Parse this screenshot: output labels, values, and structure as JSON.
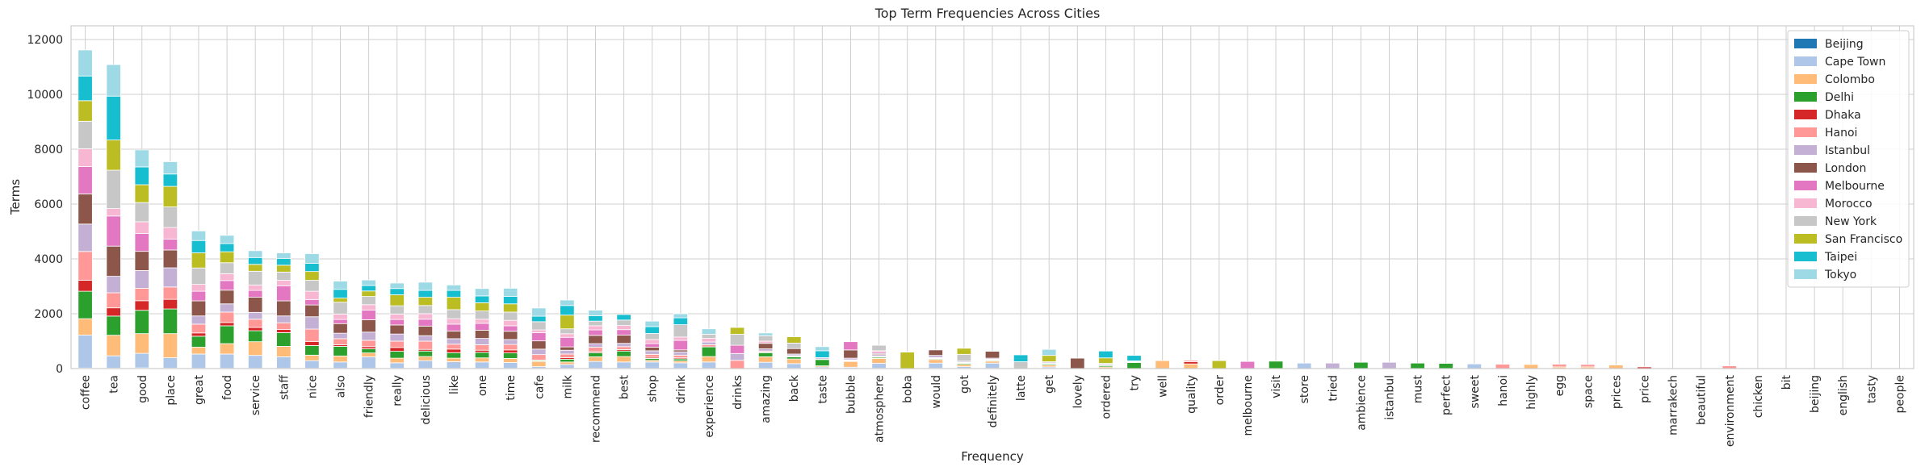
{
  "chart_data": {
    "type": "bar",
    "stacked": true,
    "title": "Top Term Frequencies Across Cities",
    "xlabel": "Frequency",
    "ylabel": "Terms",
    "ylim": [
      0,
      12500
    ],
    "yticks": [
      0,
      2000,
      4000,
      6000,
      8000,
      10000,
      12000
    ],
    "grid": true,
    "legend_position": "top-right",
    "categories": [
      "coffee",
      "tea",
      "good",
      "place",
      "great",
      "food",
      "service",
      "staff",
      "nice",
      "also",
      "friendly",
      "really",
      "delicious",
      "like",
      "one",
      "time",
      "cafe",
      "milk",
      "recommend",
      "best",
      "shop",
      "drink",
      "experience",
      "drinks",
      "amazing",
      "back",
      "taste",
      "bubble",
      "atmosphere",
      "boba",
      "would",
      "got",
      "definitely",
      "latte",
      "get",
      "lovely",
      "ordered",
      "try",
      "well",
      "quality",
      "order",
      "melbourne",
      "visit",
      "store",
      "tried",
      "ambience",
      "istanbul",
      "must",
      "perfect",
      "sweet",
      "hanoi",
      "highly",
      "egg",
      "space",
      "prices",
      "price",
      "marrakech",
      "beautiful",
      "environment",
      "chicken",
      "bit",
      "beijing",
      "english",
      "tasty",
      "people"
    ],
    "series": [
      {
        "name": "Beijing",
        "color": "#1f77b4",
        "values": [
          20,
          15,
          25,
          15,
          10,
          10,
          10,
          10,
          10,
          10,
          10,
          10,
          10,
          10,
          10,
          10,
          10,
          10,
          10,
          10,
          10,
          10,
          10,
          0,
          10,
          10,
          10,
          10,
          10,
          0,
          10,
          10,
          10,
          0,
          10,
          0,
          0,
          0,
          0,
          0,
          0,
          0,
          0,
          0,
          0,
          0,
          0,
          0,
          0,
          0,
          0,
          0,
          0,
          0,
          0,
          0,
          0,
          0,
          0,
          0,
          0,
          0,
          0,
          0,
          0
        ]
      },
      {
        "name": "Cape Town",
        "color": "#aec7e8",
        "values": [
          1200,
          450,
          530,
          380,
          520,
          520,
          470,
          420,
          280,
          230,
          420,
          200,
          280,
          240,
          230,
          210,
          60,
          140,
          250,
          230,
          230,
          200,
          230,
          0,
          220,
          170,
          50,
          40,
          180,
          0,
          190,
          60,
          190,
          0,
          50,
          0,
          0,
          0,
          0,
          0,
          0,
          0,
          0,
          200,
          0,
          0,
          0,
          0,
          0,
          170,
          0,
          0,
          0,
          0,
          0,
          0,
          0,
          0,
          0,
          0,
          0,
          0,
          0,
          0,
          0
        ]
      },
      {
        "name": "Colombo",
        "color": "#ffbb78",
        "values": [
          600,
          750,
          720,
          880,
          250,
          380,
          500,
          380,
          200,
          220,
          140,
          170,
          150,
          130,
          150,
          150,
          190,
          90,
          170,
          200,
          60,
          70,
          200,
          0,
          200,
          170,
          40,
          210,
          180,
          0,
          130,
          80,
          70,
          0,
          70,
          0,
          60,
          0,
          290,
          170,
          0,
          0,
          0,
          0,
          0,
          0,
          0,
          0,
          0,
          0,
          0,
          150,
          60,
          60,
          130,
          0,
          0,
          0,
          0,
          0,
          0,
          0,
          0,
          0,
          0
        ]
      },
      {
        "name": "Delhi",
        "color": "#2ca02c",
        "values": [
          1000,
          700,
          850,
          900,
          400,
          650,
          400,
          500,
          350,
          350,
          150,
          250,
          200,
          200,
          200,
          200,
          30,
          100,
          150,
          200,
          70,
          70,
          350,
          0,
          150,
          80,
          230,
          20,
          40,
          0,
          30,
          40,
          30,
          0,
          40,
          0,
          50,
          220,
          0,
          0,
          0,
          0,
          270,
          0,
          0,
          230,
          0,
          200,
          190,
          0,
          0,
          0,
          0,
          0,
          0,
          0,
          0,
          0,
          0,
          0,
          0,
          0,
          0,
          0,
          0
        ]
      },
      {
        "name": "Dhaka",
        "color": "#d62728",
        "values": [
          400,
          300,
          350,
          350,
          120,
          120,
          120,
          120,
          150,
          60,
          80,
          140,
          60,
          130,
          80,
          110,
          20,
          60,
          40,
          50,
          40,
          40,
          0,
          0,
          20,
          20,
          10,
          20,
          20,
          0,
          20,
          20,
          20,
          0,
          20,
          0,
          20,
          20,
          0,
          80,
          0,
          0,
          0,
          0,
          0,
          0,
          0,
          0,
          0,
          0,
          0,
          0,
          0,
          0,
          0,
          60,
          0,
          0,
          0,
          0,
          0,
          0,
          0,
          0,
          0
        ]
      },
      {
        "name": "Hanoi",
        "color": "#ff9896",
        "values": [
          1050,
          550,
          450,
          450,
          320,
          380,
          300,
          240,
          450,
          220,
          230,
          230,
          300,
          180,
          200,
          200,
          200,
          130,
          160,
          110,
          110,
          100,
          80,
          300,
          40,
          20,
          10,
          20,
          20,
          0,
          20,
          20,
          20,
          0,
          20,
          0,
          20,
          20,
          0,
          50,
          0,
          0,
          0,
          0,
          0,
          0,
          0,
          0,
          0,
          0,
          160,
          0,
          100,
          90,
          0,
          0,
          0,
          0,
          100,
          0,
          0,
          0,
          0,
          0,
          0
        ]
      },
      {
        "name": "Istanbul",
        "color": "#c5b0d5",
        "values": [
          1000,
          600,
          650,
          700,
          300,
          300,
          250,
          250,
          450,
          200,
          300,
          260,
          200,
          200,
          230,
          180,
          200,
          140,
          130,
          120,
          130,
          120,
          100,
          250,
          80,
          60,
          50,
          60,
          60,
          0,
          80,
          40,
          40,
          0,
          40,
          0,
          40,
          20,
          0,
          0,
          0,
          0,
          0,
          0,
          200,
          0,
          230,
          0,
          0,
          0,
          0,
          0,
          0,
          0,
          0,
          0,
          0,
          0,
          0,
          0,
          0,
          0,
          0,
          0,
          0
        ]
      },
      {
        "name": "London",
        "color": "#8c564b",
        "values": [
          1100,
          1100,
          700,
          650,
          550,
          500,
          550,
          550,
          430,
          350,
          450,
          330,
          350,
          280,
          300,
          300,
          300,
          120,
          300,
          300,
          130,
          70,
          0,
          0,
          200,
          200,
          0,
          300,
          40,
          0,
          200,
          0,
          250,
          0,
          0,
          380,
          0,
          0,
          0,
          0,
          0,
          0,
          0,
          0,
          0,
          0,
          0,
          0,
          0,
          0,
          0,
          0,
          0,
          0,
          0,
          0,
          0,
          0,
          0,
          0,
          0,
          0,
          0,
          0,
          0
        ]
      },
      {
        "name": "Melbourne",
        "color": "#e377c2",
        "values": [
          1000,
          1100,
          650,
          400,
          350,
          350,
          250,
          550,
          200,
          150,
          350,
          200,
          250,
          250,
          250,
          200,
          300,
          350,
          200,
          200,
          130,
          350,
          0,
          300,
          0,
          0,
          0,
          300,
          50,
          0,
          0,
          0,
          0,
          0,
          0,
          0,
          0,
          0,
          0,
          0,
          0,
          260,
          0,
          0,
          0,
          0,
          0,
          0,
          0,
          0,
          0,
          0,
          0,
          0,
          0,
          0,
          0,
          0,
          0,
          0,
          0,
          0,
          0,
          0,
          0
        ]
      },
      {
        "name": "Morocco",
        "color": "#f7b6d2",
        "values": [
          650,
          270,
          430,
          420,
          250,
          250,
          200,
          200,
          300,
          200,
          200,
          200,
          200,
          200,
          150,
          200,
          100,
          130,
          150,
          150,
          150,
          120,
          130,
          0,
          80,
          0,
          0,
          0,
          50,
          0,
          0,
          0,
          0,
          0,
          0,
          0,
          0,
          0,
          0,
          0,
          0,
          0,
          0,
          0,
          0,
          0,
          0,
          0,
          0,
          0,
          0,
          0,
          0,
          0,
          0,
          0,
          0,
          0,
          0,
          0,
          0,
          0,
          0,
          0,
          0
        ]
      },
      {
        "name": "New York",
        "color": "#c7c7c7",
        "values": [
          1000,
          1400,
          700,
          750,
          600,
          400,
          500,
          300,
          400,
          430,
          300,
          300,
          300,
          330,
          300,
          300,
          300,
          180,
          170,
          200,
          220,
          450,
          150,
          400,
          200,
          200,
          0,
          0,
          200,
          0,
          0,
          250,
          0,
          250,
          0,
          0,
          0,
          0,
          0,
          0,
          0,
          0,
          0,
          0,
          0,
          0,
          0,
          0,
          0,
          0,
          0,
          0,
          0,
          0,
          0,
          0,
          0,
          0,
          0,
          0,
          0,
          0,
          0,
          0,
          0
        ]
      },
      {
        "name": "San Francisco",
        "color": "#bcbd22",
        "values": [
          750,
          1100,
          650,
          750,
          550,
          400,
          250,
          250,
          320,
          150,
          200,
          400,
          300,
          450,
          300,
          300,
          0,
          500,
          0,
          0,
          0,
          0,
          0,
          250,
          0,
          230,
          0,
          0,
          0,
          600,
          0,
          220,
          0,
          0,
          230,
          0,
          200,
          0,
          0,
          0,
          290,
          0,
          0,
          0,
          0,
          0,
          0,
          0,
          0,
          0,
          0,
          0,
          0,
          0,
          0,
          0,
          0,
          0,
          0,
          0,
          0,
          0,
          0,
          0,
          0
        ]
      },
      {
        "name": "Taipei",
        "color": "#17becf",
        "values": [
          900,
          1600,
          650,
          450,
          450,
          300,
          250,
          250,
          300,
          320,
          200,
          230,
          250,
          250,
          250,
          270,
          200,
          350,
          200,
          200,
          250,
          250,
          0,
          0,
          0,
          0,
          250,
          0,
          0,
          0,
          0,
          0,
          0,
          250,
          0,
          0,
          250,
          200,
          0,
          0,
          0,
          0,
          0,
          0,
          0,
          0,
          0,
          0,
          0,
          0,
          0,
          0,
          0,
          0,
          0,
          0,
          0,
          0,
          0,
          0,
          0,
          0,
          0,
          0,
          0
        ]
      },
      {
        "name": "Tokyo",
        "color": "#9edae5",
        "values": [
          950,
          1150,
          620,
          450,
          350,
          300,
          250,
          200,
          350,
          300,
          200,
          200,
          300,
          200,
          270,
          300,
          300,
          200,
          200,
          0,
          200,
          150,
          200,
          0,
          100,
          0,
          150,
          0,
          0,
          0,
          0,
          0,
          0,
          0,
          220,
          0,
          0,
          0,
          0,
          0,
          0,
          0,
          0,
          0,
          0,
          0,
          0,
          0,
          0,
          0,
          0,
          0,
          0,
          0,
          0,
          0,
          0,
          0,
          0,
          0,
          0,
          0,
          0,
          0,
          0
        ]
      }
    ]
  }
}
